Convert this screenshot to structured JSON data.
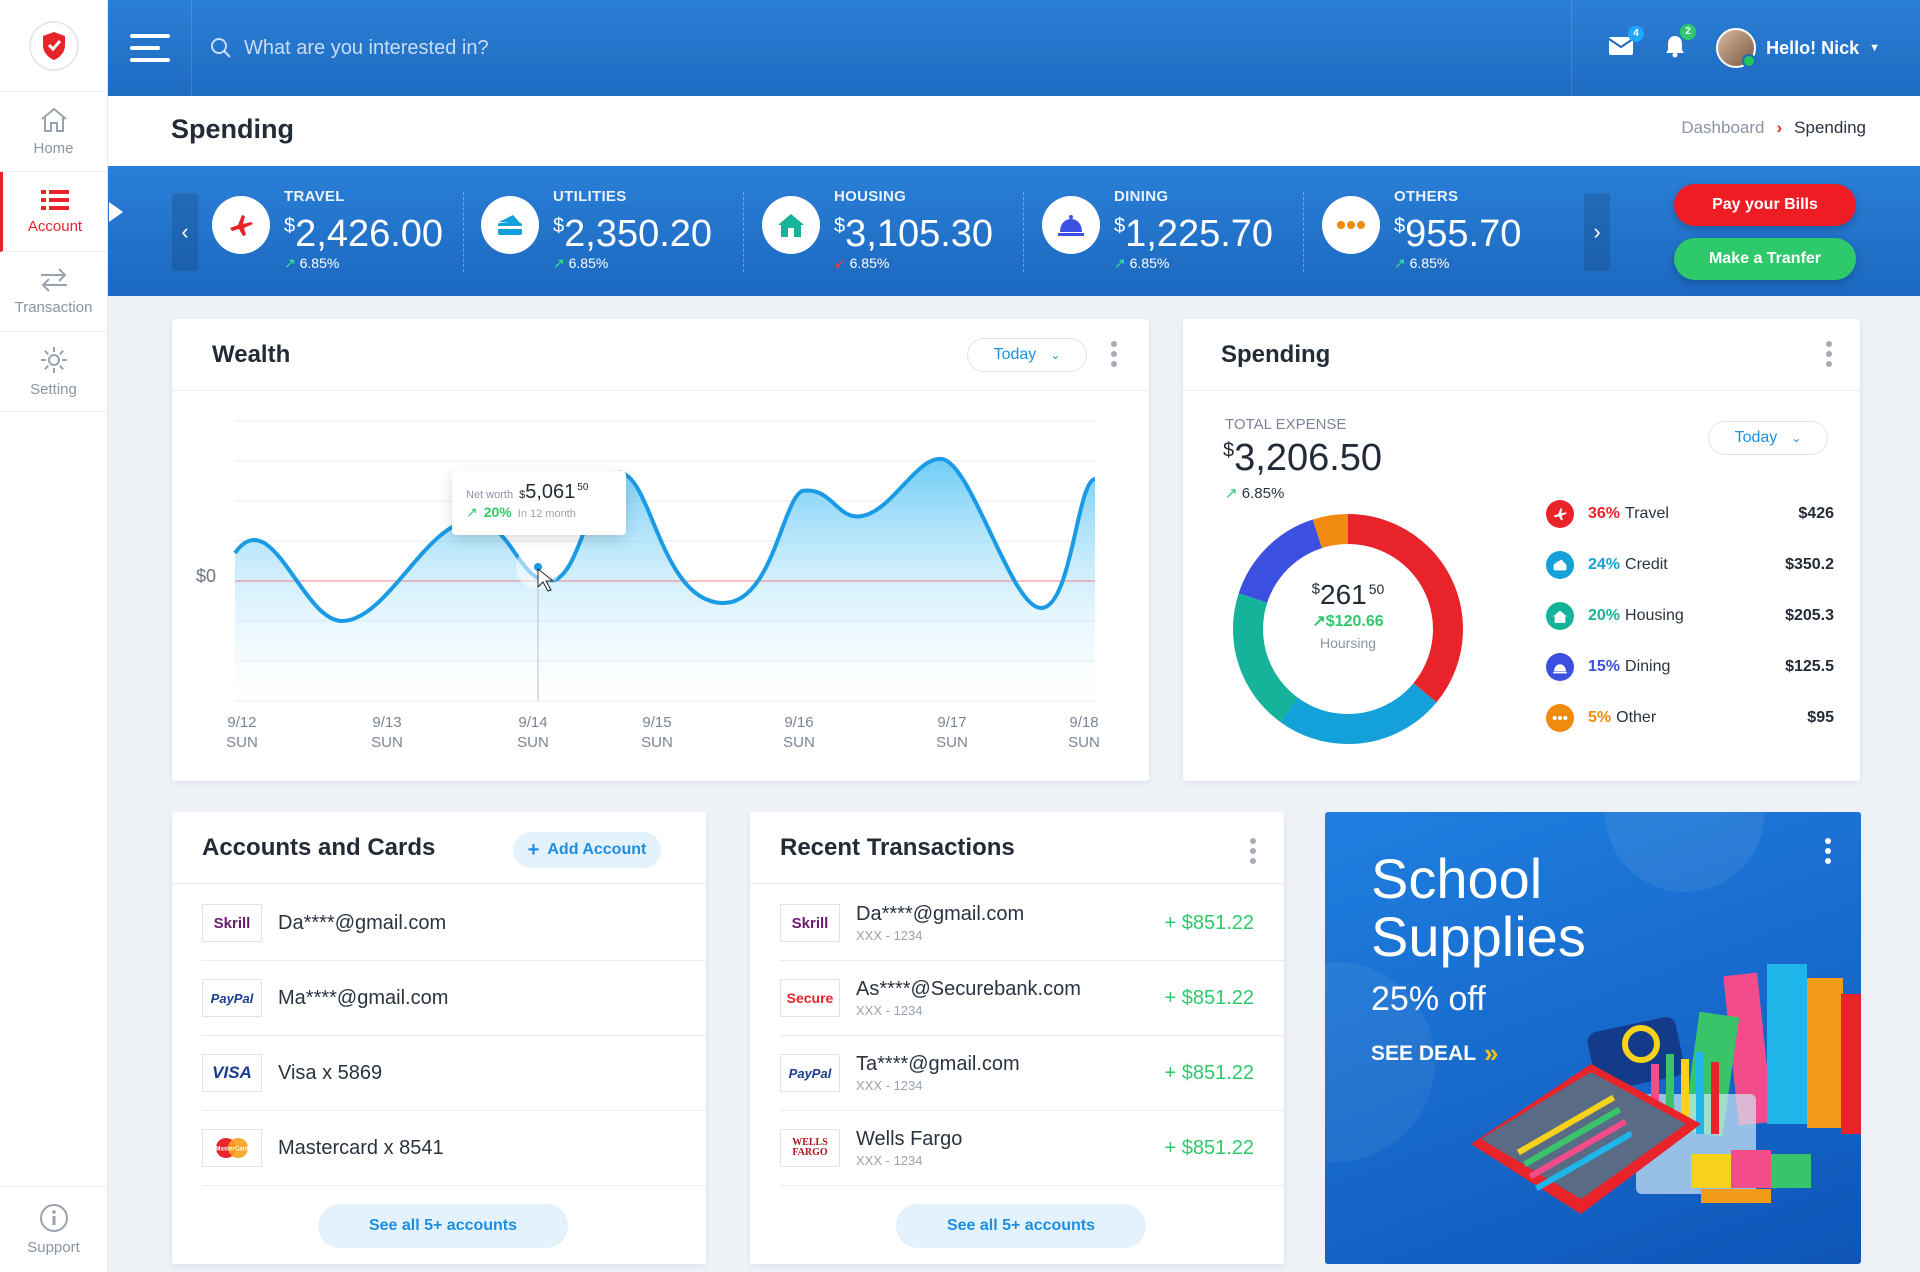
{
  "sidebar": {
    "items": [
      {
        "label": "Home"
      },
      {
        "label": "Account"
      },
      {
        "label": "Transaction"
      },
      {
        "label": "Setting"
      }
    ],
    "support_label": "Support"
  },
  "topbar": {
    "search_placeholder": "What are you interested in?",
    "mail_badge": "4",
    "bell_badge": "2",
    "user_greeting": "Hello! Nick"
  },
  "page": {
    "title": "Spending",
    "breadcrumb": [
      "Dashboard",
      "Spending"
    ]
  },
  "stats": [
    {
      "label": "TRAVEL",
      "currency": "$",
      "amount": "2,426.00",
      "change": "6.85%",
      "direction": "up",
      "icon": "airplane-icon",
      "color": "#e8232a"
    },
    {
      "label": "UTILITIES",
      "currency": "$",
      "amount": "2,350.20",
      "change": "6.85%",
      "direction": "up",
      "icon": "credit-card-icon",
      "color": "#14a0d8"
    },
    {
      "label": "HOUSING",
      "currency": "$",
      "amount": "3,105.30",
      "change": "6.85%",
      "direction": "down",
      "icon": "house-icon",
      "color": "#14b39a"
    },
    {
      "label": "DINING",
      "currency": "$",
      "amount": "1,225.70",
      "change": "6.85%",
      "direction": "up",
      "icon": "dining-bell-icon",
      "color": "#3b4fe0"
    },
    {
      "label": "OTHERS",
      "currency": "$",
      "amount": "955.70",
      "change": "6.85%",
      "direction": "up",
      "icon": "more-dots-icon",
      "color": "#f08a10"
    }
  ],
  "actions": {
    "pay_bills": "Pay your Bills",
    "make_transfer": "Make a Tranfer"
  },
  "wealth": {
    "title": "Wealth",
    "period": "Today",
    "zero_label": "$0",
    "tooltip": {
      "label": "Net worth",
      "currency": "$",
      "value": "5,061",
      "cents": "50",
      "change": "20%",
      "change_note": "In 12 month"
    },
    "ticks": [
      {
        "date": "9/12",
        "day": "SUN"
      },
      {
        "date": "9/13",
        "day": "SUN"
      },
      {
        "date": "9/14",
        "day": "SUN"
      },
      {
        "date": "9/15",
        "day": "SUN"
      },
      {
        "date": "9/16",
        "day": "SUN"
      },
      {
        "date": "9/17",
        "day": "SUN"
      },
      {
        "date": "9/18",
        "day": "SUN"
      }
    ]
  },
  "spending_card": {
    "title": "Spending",
    "period": "Today",
    "total_label": "TOTAL EXPENSE",
    "currency": "$",
    "total": "3,206.50",
    "change": "6.85%",
    "donut": {
      "currency": "$",
      "value": "261",
      "cents": "50",
      "change": "$120.66",
      "caption": "Hoursing"
    },
    "legend": [
      {
        "pct": "36%",
        "name": "Travel",
        "value": "$426",
        "color": "#e8232a",
        "icon": "airplane-icon"
      },
      {
        "pct": "24%",
        "name": "Credit",
        "value": "$350.2",
        "color": "#14a0d8",
        "icon": "credit-card-icon"
      },
      {
        "pct": "20%",
        "name": "Housing",
        "value": "$205.3",
        "color": "#14b39a",
        "icon": "house-icon"
      },
      {
        "pct": "15%",
        "name": "Dining",
        "value": "$125.5",
        "color": "#3b4fe0",
        "icon": "dining-bell-icon"
      },
      {
        "pct": "5%",
        "name": "Other",
        "value": "$95",
        "color": "#f08a10",
        "icon": "more-dots-icon"
      }
    ]
  },
  "accounts": {
    "title": "Accounts and Cards",
    "add_label": "Add Account",
    "items": [
      {
        "logo": "Skrill",
        "name": "Da****@gmail.com"
      },
      {
        "logo": "PayPal",
        "name": "Ma****@gmail.com"
      },
      {
        "logo": "VISA",
        "name": "Visa x 5869"
      },
      {
        "logo": "MasterCard",
        "name": "Mastercard x 8541"
      }
    ],
    "see_all": "See all 5+ accounts"
  },
  "transactions": {
    "title": "Recent Transactions",
    "items": [
      {
        "logo": "Skrill",
        "name": "Da****@gmail.com",
        "sub": "XXX - 1234",
        "amount": "+ $851.22"
      },
      {
        "logo": "Secure",
        "name": "As****@Securebank.com",
        "sub": "XXX - 1234",
        "amount": "+ $851.22"
      },
      {
        "logo": "PayPal",
        "name": "Ta****@gmail.com",
        "sub": "XXX - 1234",
        "amount": "+ $851.22"
      },
      {
        "logo": "WELLS FARGO",
        "name": "Wells Fargo",
        "sub": "XXX - 1234",
        "amount": "+ $851.22"
      }
    ],
    "see_all": "See all 5+ accounts"
  },
  "promo": {
    "line1": "School",
    "line2": "Supplies",
    "discount": "25% off",
    "cta": "SEE DEAL"
  }
}
